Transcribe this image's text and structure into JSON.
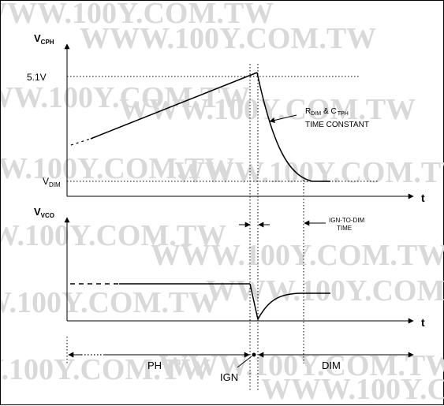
{
  "watermark": {
    "text": "WWW.100Y.COM.TW",
    "color": "#d9d9d9"
  },
  "upper_graph": {
    "y_label_main": "V",
    "y_label_sub": "CPH",
    "level_high": "5.1V",
    "level_low_main": "V",
    "level_low_sub": "DIM",
    "annotation": {
      "r_main": "R",
      "r_sub": "DIM",
      "amp": "& C",
      "c_sub": "TPH",
      "line2": "TIME CONSTANT"
    },
    "x_label": "t"
  },
  "lower_graph": {
    "y_label_main": "V",
    "y_label_sub": "VCO",
    "x_label": "t",
    "annotation": {
      "line1": "IGN-TO-DIM",
      "line2": "TIME"
    }
  },
  "timeline": {
    "ph_label": "PH",
    "ign_label": "IGN",
    "dim_label": "DIM"
  }
}
